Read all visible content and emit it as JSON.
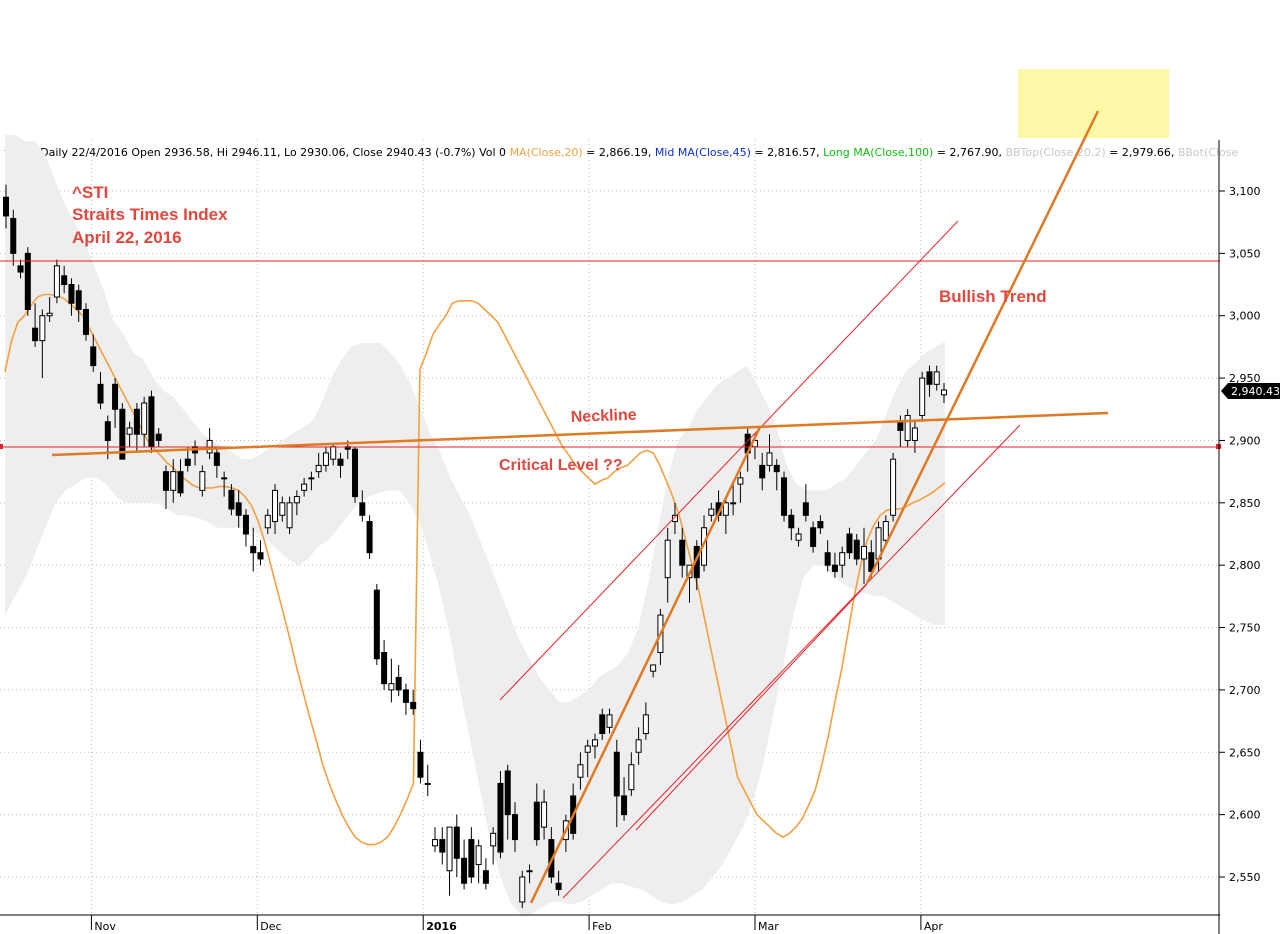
{
  "header": {
    "prefix": "^STI - Daily 22/4/2016 Open 2936.58, Hi 2946.11, Lo 2930.06, Close 2940.43 (-0.7%) Vol 0 ",
    "ma20_label": "MA(Close,20)",
    "ma20_value": " = 2,866.19, ",
    "ma45_label": "Mid MA(Close,45)",
    "ma45_value": " = 2,816.57, ",
    "ma100_label": "Long MA(Close,100)",
    "ma100_value": " = 2,767.90, ",
    "bbtop_label": "BBTop(Close,20,2)",
    "bbtop_value": " = 2,979.66, ",
    "bbbot_label": "BBot(Close"
  },
  "title_block": {
    "line1": "^STI",
    "line2": "Straits Times Index",
    "line3": "April 22, 2016"
  },
  "annotations": {
    "neckline": "Neckline",
    "critical": "Critical Level ??",
    "bullish": "Bullish Trend"
  },
  "last_price_label": "2,940.43",
  "colors": {
    "annotation_text": "#e0483e",
    "trend_line": "#e07a22",
    "channel_line": "#e8202a",
    "ma20": "#f5a040",
    "band_fill": "#eeeeee",
    "ma20_label": "#f5a040",
    "ma45_label": "#1030d0",
    "ma100_label": "#10c010",
    "bb_label": "#c8c8c8",
    "highlight_box": "#fff7a8"
  },
  "chart_data": {
    "type": "candlestick",
    "title": "^STI Straits Times Index April 22, 2016",
    "xlabel": "",
    "ylabel": "",
    "ylim": [
      2520,
      3125
    ],
    "y_ticks": [
      2550,
      2600,
      2650,
      2700,
      2750,
      2800,
      2850,
      2900,
      2950,
      3000,
      3050,
      3100
    ],
    "y_tick_labels": [
      "2,550",
      "2,600",
      "2,650",
      "2,700",
      "2,750",
      "2,800",
      "2,850",
      "2,900",
      "2,950",
      "3,000",
      "3,050",
      "3,100"
    ],
    "x_labels": [
      "Nov",
      "Dec",
      "2016",
      "Feb",
      "Mar",
      "Apr"
    ],
    "x_label_index": [
      6,
      27,
      48,
      69,
      90,
      111
    ],
    "candles": [
      [
        3095,
        3105,
        3070,
        3080
      ],
      [
        3078,
        3085,
        3040,
        3050
      ],
      [
        3040,
        3045,
        3030,
        3035
      ],
      [
        3050,
        3055,
        3000,
        3005
      ],
      [
        2990,
        3010,
        2975,
        2980
      ],
      [
        2980,
        3005,
        2950,
        3000
      ],
      [
        3000,
        3015,
        2995,
        3002
      ],
      [
        3015,
        3045,
        3010,
        3040
      ],
      [
        3032,
        3040,
        3018,
        3025
      ],
      [
        3025,
        3030,
        3000,
        3010
      ],
      [
        3020,
        3025,
        2995,
        3005
      ],
      [
        3005,
        3010,
        2980,
        2985
      ],
      [
        2975,
        2985,
        2955,
        2960
      ],
      [
        2945,
        2955,
        2925,
        2930
      ],
      [
        2915,
        2920,
        2885,
        2900
      ],
      [
        2945,
        2950,
        2910,
        2925
      ],
      [
        2925,
        2930,
        2885,
        2885
      ],
      [
        2905,
        2915,
        2895,
        2910
      ],
      [
        2925,
        2930,
        2890,
        2905
      ],
      [
        2905,
        2935,
        2895,
        2930
      ],
      [
        2935,
        2940,
        2890,
        2895
      ],
      [
        2905,
        2910,
        2895,
        2900
      ],
      [
        2875,
        2880,
        2845,
        2860
      ],
      [
        2860,
        2885,
        2850,
        2875
      ],
      [
        2875,
        2885,
        2855,
        2858
      ],
      [
        2885,
        2895,
        2875,
        2880
      ],
      [
        2895,
        2900,
        2880,
        2890
      ],
      [
        2860,
        2880,
        2855,
        2875
      ],
      [
        2890,
        2910,
        2885,
        2900
      ],
      [
        2890,
        2895,
        2870,
        2880
      ],
      [
        2870,
        2875,
        2855,
        2870
      ],
      [
        2860,
        2865,
        2840,
        2845
      ],
      [
        2850,
        2860,
        2830,
        2840
      ],
      [
        2840,
        2845,
        2815,
        2825
      ],
      [
        2815,
        2830,
        2795,
        2810
      ],
      [
        2810,
        2820,
        2800,
        2805
      ],
      [
        2830,
        2845,
        2825,
        2840
      ],
      [
        2835,
        2865,
        2825,
        2860
      ],
      [
        2840,
        2855,
        2835,
        2850
      ],
      [
        2830,
        2855,
        2825,
        2850
      ],
      [
        2850,
        2860,
        2840,
        2855
      ],
      [
        2860,
        2870,
        2855,
        2865
      ],
      [
        2870,
        2875,
        2860,
        2870
      ],
      [
        2875,
        2890,
        2870,
        2880
      ],
      [
        2880,
        2895,
        2875,
        2890
      ],
      [
        2885,
        2898,
        2880,
        2895
      ],
      [
        2885,
        2890,
        2870,
        2880
      ],
      [
        2895,
        2900,
        2885,
        2893
      ],
      [
        2893,
        2895,
        2850,
        2855
      ],
      [
        2850,
        2860,
        2835,
        2840
      ],
      [
        2835,
        2840,
        2805,
        2810
      ],
      [
        2780,
        2785,
        2720,
        2725
      ],
      [
        2730,
        2740,
        2700,
        2705
      ],
      [
        2700,
        2725,
        2690,
        2705
      ],
      [
        2710,
        2720,
        2695,
        2700
      ],
      [
        2700,
        2705,
        2680,
        2690
      ],
      [
        2690,
        2700,
        2680,
        2685
      ],
      [
        2650,
        2660,
        2625,
        2630
      ],
      [
        2625,
        2640,
        2615,
        2625
      ],
      [
        2575,
        2590,
        2570,
        2580
      ],
      [
        2580,
        2590,
        2560,
        2570
      ],
      [
        2555,
        2590,
        2535,
        2590
      ],
      [
        2590,
        2600,
        2550,
        2565
      ],
      [
        2565,
        2580,
        2540,
        2545
      ],
      [
        2580,
        2590,
        2545,
        2550
      ],
      [
        2560,
        2580,
        2545,
        2575
      ],
      [
        2555,
        2565,
        2540,
        2545
      ],
      [
        2575,
        2590,
        2560,
        2585
      ],
      [
        2625,
        2635,
        2565,
        2570
      ],
      [
        2635,
        2640,
        2580,
        2600
      ],
      [
        2600,
        2610,
        2570,
        2580
      ],
      [
        2530,
        2555,
        2525,
        2550
      ],
      [
        2555,
        2560,
        2545,
        2555
      ],
      [
        2610,
        2625,
        2575,
        2580
      ],
      [
        2590,
        2620,
        2580,
        2610
      ],
      [
        2580,
        2590,
        2545,
        2550
      ],
      [
        2545,
        2555,
        2535,
        2540
      ],
      [
        2580,
        2600,
        2570,
        2595
      ],
      [
        2615,
        2625,
        2580,
        2585
      ],
      [
        2630,
        2650,
        2620,
        2640
      ],
      [
        2650,
        2660,
        2630,
        2655
      ],
      [
        2655,
        2665,
        2645,
        2660
      ],
      [
        2680,
        2685,
        2660,
        2665
      ],
      [
        2670,
        2685,
        2665,
        2680
      ],
      [
        2650,
        2660,
        2590,
        2615
      ],
      [
        2615,
        2630,
        2595,
        2600
      ],
      [
        2620,
        2650,
        2615,
        2640
      ],
      [
        2650,
        2670,
        2640,
        2660
      ],
      [
        2665,
        2690,
        2660,
        2680
      ],
      [
        2715,
        2720,
        2710,
        2720
      ],
      [
        2730,
        2765,
        2720,
        2760
      ],
      [
        2790,
        2830,
        2770,
        2820
      ],
      [
        2835,
        2850,
        2825,
        2840
      ],
      [
        2820,
        2830,
        2790,
        2800
      ],
      [
        2790,
        2800,
        2770,
        2800
      ],
      [
        2815,
        2820,
        2780,
        2790
      ],
      [
        2800,
        2840,
        2795,
        2830
      ],
      [
        2840,
        2850,
        2835,
        2845
      ],
      [
        2850,
        2860,
        2835,
        2840
      ],
      [
        2840,
        2855,
        2825,
        2850
      ],
      [
        2850,
        2865,
        2840,
        2850
      ],
      [
        2865,
        2875,
        2850,
        2870
      ],
      [
        2905,
        2910,
        2875,
        2890
      ],
      [
        2895,
        2905,
        2885,
        2900
      ],
      [
        2880,
        2890,
        2860,
        2870
      ],
      [
        2880,
        2905,
        2875,
        2890
      ],
      [
        2880,
        2885,
        2860,
        2875
      ],
      [
        2870,
        2875,
        2835,
        2840
      ],
      [
        2840,
        2845,
        2820,
        2830
      ],
      [
        2820,
        2830,
        2815,
        2825
      ],
      [
        2850,
        2865,
        2835,
        2840
      ],
      [
        2830,
        2835,
        2810,
        2815
      ],
      [
        2835,
        2840,
        2825,
        2830
      ],
      [
        2810,
        2820,
        2795,
        2800
      ],
      [
        2800,
        2810,
        2790,
        2795
      ],
      [
        2800,
        2815,
        2790,
        2810
      ],
      [
        2825,
        2830,
        2805,
        2810
      ],
      [
        2820,
        2825,
        2800,
        2805
      ],
      [
        2805,
        2830,
        2785,
        2815
      ],
      [
        2810,
        2820,
        2790,
        2795
      ],
      [
        2805,
        2835,
        2795,
        2830
      ],
      [
        2820,
        2840,
        2815,
        2835
      ],
      [
        2840,
        2890,
        2835,
        2885
      ],
      [
        2915,
        2920,
        2895,
        2908
      ],
      [
        2900,
        2925,
        2895,
        2920
      ],
      [
        2900,
        2915,
        2890,
        2910
      ],
      [
        2920,
        2955,
        2915,
        2950
      ],
      [
        2955,
        2960,
        2935,
        2945
      ],
      [
        2945,
        2960,
        2940,
        2955
      ],
      [
        2936.58,
        2946.11,
        2930.06,
        2940.43
      ]
    ],
    "ma20": [
      2957,
      2970,
      2985,
      2993,
      3000,
      3010,
      3012,
      3012,
      3012,
      3010,
      3005,
      3000,
      2995,
      2985,
      2975,
      2965,
      2955,
      2945,
      2935,
      2925,
      2915,
      2905,
      2895,
      2888,
      2880,
      2875,
      2870,
      2865,
      2868,
      2870,
      2875,
      2878,
      2880,
      2885,
      2890,
      2892,
      2890,
      2880,
      2868,
      2855,
      2840,
      2820,
      2800,
      2780,
      2755,
      2730,
      2705,
      2680,
      2655,
      2630,
      2620,
      2610,
      2600,
      2595,
      2590,
      2585,
      2582,
      2585,
      2590,
      2597,
      2608,
      2620,
      2640,
      2663,
      2690,
      2715,
      2745,
      2775,
      2800,
      2820,
      2832,
      2840,
      2844,
      2845,
      2845,
      2847,
      2850,
      2852,
      2855,
      2858,
      2862,
      2866
    ],
    "ma20_start_index": 64,
    "ma20_early": [
      2955,
      2980,
      2995,
      3000,
      3008,
      3015,
      3017,
      3017,
      3016,
      3014,
      3010,
      3005,
      3000,
      2990,
      2980,
      2970,
      2960,
      2950,
      2940,
      2930,
      2920,
      2910,
      2900,
      2893,
      2888,
      2882,
      2878,
      2872,
      2868,
      2864,
      2862,
      2862,
      2862,
      2863,
      2863,
      2862,
      2860,
      2855,
      2848,
      2836,
      2820,
      2800,
      2780,
      2760,
      2740,
      2718,
      2698,
      2678,
      2660,
      2640,
      2625,
      2612,
      2600,
      2590,
      2582,
      2578,
      2576,
      2576,
      2578,
      2582,
      2590,
      2600,
      2612,
      2625
    ],
    "bb_upper": [
      3145,
      3145,
      3140,
      3140,
      3130,
      3110,
      3090,
      3075,
      3060,
      3040,
      3020,
      2995,
      2985,
      2970,
      2965,
      2950,
      2940,
      2935,
      2925,
      2915,
      2905,
      2900,
      2895,
      2890,
      2885,
      2885,
      2890,
      2895,
      2900,
      2905,
      2910,
      2915,
      2930,
      2950,
      2965,
      2975,
      2978,
      2978,
      2978,
      2970,
      2960,
      2945,
      2925,
      2905,
      2890,
      2870,
      2855,
      2840,
      2820,
      2800,
      2780,
      2760,
      2740,
      2725,
      2710,
      2700,
      2690,
      2690,
      2695,
      2700,
      2710,
      2715,
      2720,
      2730,
      2750,
      2785,
      2830,
      2870,
      2900,
      2910,
      2925,
      2935,
      2945,
      2950,
      2955,
      2960,
      2945,
      2930,
      2910,
      2880,
      2865,
      2860,
      2860,
      2860,
      2865,
      2870,
      2880,
      2890,
      2900,
      2920,
      2940,
      2955,
      2962,
      2970,
      2975,
      2979
    ],
    "bb_lower": [
      2760,
      2775,
      2790,
      2810,
      2830,
      2850,
      2860,
      2865,
      2870,
      2870,
      2865,
      2855,
      2850,
      2850,
      2850,
      2850,
      2845,
      2840,
      2840,
      2838,
      2835,
      2830,
      2830,
      2830,
      2830,
      2825,
      2820,
      2812,
      2805,
      2800,
      2805,
      2815,
      2820,
      2830,
      2840,
      2850,
      2855,
      2858,
      2860,
      2860,
      2850,
      2835,
      2810,
      2780,
      2745,
      2700,
      2660,
      2620,
      2580,
      2550,
      2530,
      2520,
      2520,
      2525,
      2530,
      2530,
      2528,
      2530,
      2535,
      2540,
      2545,
      2545,
      2542,
      2540,
      2535,
      2530,
      2528,
      2530,
      2535,
      2540,
      2550,
      2560,
      2575,
      2590,
      2610,
      2640,
      2680,
      2720,
      2760,
      2790,
      2800,
      2800,
      2790,
      2785,
      2780,
      2778,
      2775,
      2775,
      2770,
      2765,
      2760,
      2755,
      2752,
      2752
    ],
    "reference_lines": [
      {
        "label": "",
        "value": 3045
      },
      {
        "label": "Critical Level ??",
        "value": 2895
      }
    ]
  }
}
